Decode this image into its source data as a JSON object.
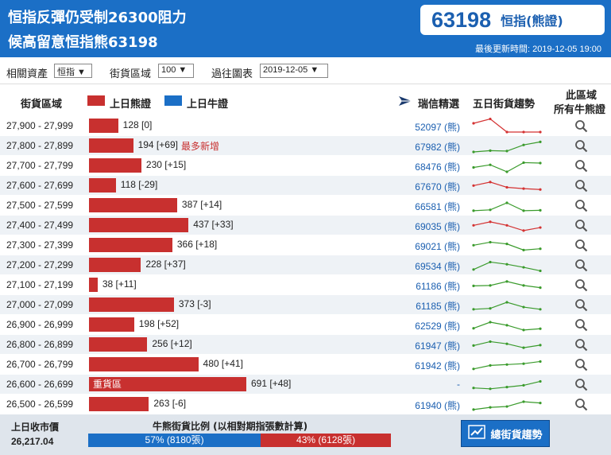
{
  "header": {
    "title_line1": "恒指反彈仍受制26300阻力",
    "title_line2": "候高留意恒指熊63198",
    "code": "63198",
    "code_type": "恒指(熊證)",
    "code_type_arrow": "▸",
    "updated": "最後更新時間: 2019-12-05 19:00"
  },
  "filters": {
    "asset_label": "相關資產",
    "asset_value": "恒指 ▼",
    "zone_label": "街貨區域",
    "zone_value": "100 ▼",
    "chart_label": "過往圖表",
    "chart_value": "2019-12-05 ▼"
  },
  "columns": {
    "zone": "街貨區域",
    "bear_legend": "上日熊證",
    "bull_legend": "上日牛證",
    "issuer": "瑞信精選",
    "trend": "五日街貨趨勢",
    "all_l1": "此區域",
    "all_l2": "所有牛熊證"
  },
  "colors": {
    "bear": "#c8302f",
    "bull": "#1b6fc6",
    "trend_up": "#3a9b2c",
    "trend_down": "#d43232"
  },
  "rows": [
    {
      "zone": "27,900 - 27,999",
      "value": 128,
      "label": "128 [0]",
      "code": "52097 (熊)",
      "trend": "down",
      "spark": [
        3,
        4,
        1,
        1,
        1
      ]
    },
    {
      "zone": "27,800 - 27,899",
      "value": 194,
      "label": "194 [+69]",
      "tag": "最多新增",
      "code": "67982 (熊)",
      "trend": "up",
      "spark": [
        1,
        1.3,
        1.2,
        2.6,
        3.3
      ]
    },
    {
      "zone": "27,700 - 27,799",
      "value": 230,
      "label": "230 [+15]",
      "code": "68476 (熊)",
      "trend": "up",
      "spark": [
        2,
        2.6,
        1,
        3.1,
        3
      ]
    },
    {
      "zone": "27,600 - 27,699",
      "value": 118,
      "label": "118 [-29]",
      "code": "67670 (熊)",
      "trend": "down",
      "spark": [
        2.4,
        3.2,
        2,
        1.7,
        1.5
      ]
    },
    {
      "zone": "27,500 - 27,599",
      "value": 387,
      "label": "387 [+14]",
      "code": "66581 (熊)",
      "trend": "up",
      "spark": [
        1.2,
        1.4,
        3,
        1.2,
        1.3
      ]
    },
    {
      "zone": "27,400 - 27,499",
      "value": 437,
      "label": "437 [+33]",
      "code": "69035 (熊)",
      "trend": "down",
      "spark": [
        2.4,
        3.2,
        2.4,
        1.2,
        1.9
      ]
    },
    {
      "zone": "27,300 - 27,399",
      "value": 366,
      "label": "366 [+18]",
      "code": "69021 (熊)",
      "trend": "up",
      "spark": [
        2.4,
        3.1,
        2.7,
        1.3,
        1.6
      ]
    },
    {
      "zone": "27,200 - 27,299",
      "value": 228,
      "label": "228 [+37]",
      "code": "69534 (熊)",
      "trend": "up",
      "spark": [
        1.4,
        3.1,
        2.6,
        1.9,
        1.1
      ]
    },
    {
      "zone": "27,100 - 27,199",
      "value": 38,
      "label": "38 [+11]",
      "code": "61186 (熊)",
      "trend": "up",
      "spark": [
        2.2,
        2.3,
        3.2,
        2.3,
        1.8
      ]
    },
    {
      "zone": "27,000 - 27,099",
      "value": 373,
      "label": "373 [-3]",
      "code": "61185 (熊)",
      "trend": "up",
      "spark": [
        1.4,
        1.6,
        3,
        1.9,
        1.4
      ]
    },
    {
      "zone": "26,900 - 26,999",
      "value": 198,
      "label": "198 [+52]",
      "code": "62529 (熊)",
      "trend": "up",
      "spark": [
        1.6,
        3,
        2.3,
        1.2,
        1.5
      ]
    },
    {
      "zone": "26,800 - 26,899",
      "value": 256,
      "label": "256 [+12]",
      "code": "61947 (熊)",
      "trend": "up",
      "spark": [
        2.2,
        3.1,
        2.6,
        1.7,
        2.3
      ]
    },
    {
      "zone": "26,700 - 26,799",
      "value": 480,
      "label": "480 [+41]",
      "code": "61942 (熊)",
      "trend": "up",
      "spark": [
        1.4,
        2.2,
        2.4,
        2.6,
        3.1
      ]
    },
    {
      "zone": "26,600 - 26,699",
      "value": 691,
      "label": "691 [+48]",
      "heavy": "重貨區",
      "code": "-",
      "trend": "up",
      "spark": [
        1.6,
        1.4,
        1.8,
        2.2,
        3.1
      ]
    },
    {
      "zone": "26,500 - 26,599",
      "value": 263,
      "label": "263 [-6]",
      "code": "61940 (熊)",
      "trend": "up",
      "spark": [
        1.2,
        1.7,
        1.9,
        3,
        2.7
      ]
    }
  ],
  "footer": {
    "close_label": "上日收市價",
    "close_value": "26,217.04",
    "ratio_title": "牛熊街貨比例 (以相對期指張數計算)",
    "bull_pct": 57,
    "bull_text": "57% (8180張)",
    "bear_pct": 43,
    "bear_text": "43% (6128張)",
    "button": "總街貨趨勢"
  }
}
